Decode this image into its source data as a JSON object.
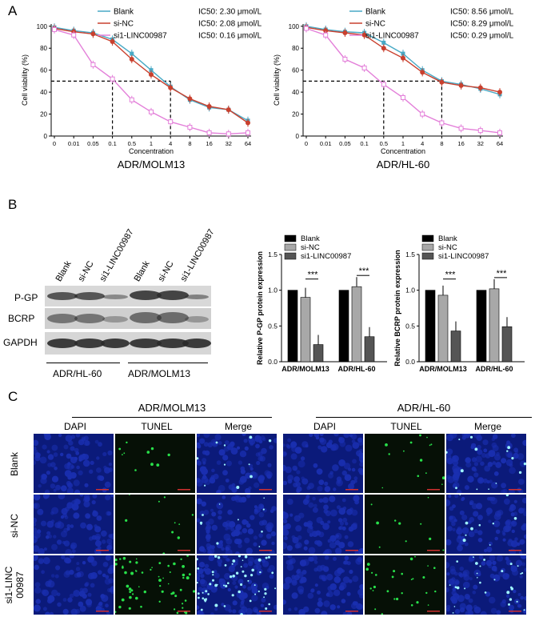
{
  "panels": {
    "a": "A",
    "b": "B",
    "c": "C"
  },
  "colors": {
    "blank": "#48a9c5",
    "sinc": "#c9402e",
    "si1": "#e37fd9",
    "bar_black": "#000000",
    "bar_grey": "#a8a8a8",
    "bar_dark": "#555555",
    "dapi": "#1a2fb0",
    "tunel": "#28e04a"
  },
  "panelA": {
    "x_ticks": [
      "0",
      "0.01",
      "0.05",
      "0.1",
      "0.5",
      "1",
      "4",
      "8",
      "16",
      "32",
      "64"
    ],
    "y_ticks": [
      "0",
      "20",
      "40",
      "60",
      "80",
      "100"
    ],
    "xlabel": "Concentration",
    "ylabel": "Cell viability (%)",
    "left": {
      "title": "ADR/MOLM13",
      "legend": [
        {
          "name": "Blank",
          "ic50": "IC50: 2.30 μmol/L"
        },
        {
          "name": "si-NC",
          "ic50": "IC50: 2.08 μmol/L"
        },
        {
          "name": "si1-LINC00987",
          "ic50": "IC50: 0.16 μmol/L"
        }
      ]
    },
    "right": {
      "title": "ADR/HL-60",
      "legend": [
        {
          "name": "Blank",
          "ic50": "IC50: 8.56 μmol/L"
        },
        {
          "name": "si-NC",
          "ic50": "IC50: 8.29 μmol/L"
        },
        {
          "name": "si1-LINC00987",
          "ic50": "IC50: 0.29 μmol/L"
        }
      ]
    }
  },
  "chart_data": [
    {
      "type": "line",
      "title": "ADR/MOLM13",
      "xlabel": "Concentration",
      "ylabel": "Cell viability (%)",
      "ylim": [
        0,
        100
      ],
      "categories": [
        "0",
        "0.01",
        "0.05",
        "0.1",
        "0.5",
        "1",
        "4",
        "8",
        "16",
        "32",
        "64"
      ],
      "series": [
        {
          "name": "Blank",
          "values": [
            99,
            96,
            94,
            88,
            75,
            60,
            45,
            33,
            26,
            24,
            14
          ]
        },
        {
          "name": "si-NC",
          "values": [
            98,
            95,
            93,
            86,
            70,
            56,
            44,
            34,
            27,
            24,
            12
          ]
        },
        {
          "name": "si1-LINC00987",
          "values": [
            97,
            92,
            65,
            52,
            33,
            22,
            13,
            8,
            3,
            2,
            3
          ]
        }
      ]
    },
    {
      "type": "line",
      "title": "ADR/HL-60",
      "xlabel": "Concentration",
      "ylabel": "Cell viability (%)",
      "ylim": [
        0,
        100
      ],
      "categories": [
        "0",
        "0.01",
        "0.05",
        "0.1",
        "0.5",
        "1",
        "4",
        "8",
        "16",
        "32",
        "64"
      ],
      "series": [
        {
          "name": "Blank",
          "values": [
            100,
            97,
            95,
            94,
            85,
            75,
            60,
            50,
            47,
            43,
            38
          ]
        },
        {
          "name": "si-NC",
          "values": [
            99,
            96,
            94,
            92,
            80,
            71,
            58,
            49,
            46,
            44,
            40
          ]
        },
        {
          "name": "si1-LINC00987",
          "values": [
            98,
            92,
            70,
            62,
            47,
            35,
            20,
            12,
            7,
            5,
            3
          ]
        }
      ]
    },
    {
      "type": "bar",
      "ylabel": "Relative P-GP protein expression",
      "ylim": [
        0,
        1.5
      ],
      "categories": [
        "ADR/MOLM13",
        "ADR/HL-60"
      ],
      "series": [
        {
          "name": "Blank",
          "values": [
            1.0,
            1.0
          ]
        },
        {
          "name": "si-NC",
          "values": [
            0.9,
            1.05
          ]
        },
        {
          "name": "si1-LINC00987",
          "values": [
            0.24,
            0.35
          ]
        }
      ]
    },
    {
      "type": "bar",
      "ylabel": "Relative BCRP protein expression",
      "ylim": [
        0,
        1.5
      ],
      "categories": [
        "ADR/MOLM13",
        "ADR/HL-60"
      ],
      "series": [
        {
          "name": "Blank",
          "values": [
            1.0,
            1.0
          ]
        },
        {
          "name": "si-NC",
          "values": [
            0.93,
            1.02
          ]
        },
        {
          "name": "si1-LINC00987",
          "values": [
            0.43,
            0.49
          ]
        }
      ]
    }
  ],
  "bars": {
    "y_ticks": [
      "0.0",
      "0.5",
      "1.0",
      "1.5"
    ],
    "legend": [
      "Blank",
      "si-NC",
      "si1-LINC00987"
    ],
    "sig": "***",
    "pgp_ylabel": "Relative P-GP protein expression",
    "bcrp_ylabel": "Relative BCRP protein expression",
    "groups": [
      "ADR/MOLM13",
      "ADR/HL-60"
    ]
  },
  "blot": {
    "columns": [
      "Blank",
      "si-NC",
      "si1-LINC00987",
      "Blank",
      "si-NC",
      "si1-LINC00987"
    ],
    "rows": [
      "P-GP",
      "BCRP",
      "GAPDH"
    ],
    "groups": [
      "ADR/HL-60",
      "ADR/MOLM13"
    ]
  },
  "micro": {
    "groups": [
      "ADR/MOLM13",
      "ADR/HL-60"
    ],
    "headers": [
      "DAPI",
      "TUNEL",
      "Merge"
    ],
    "rows": [
      "Blank",
      "si-NC",
      "si1-LINC\n00987"
    ]
  }
}
